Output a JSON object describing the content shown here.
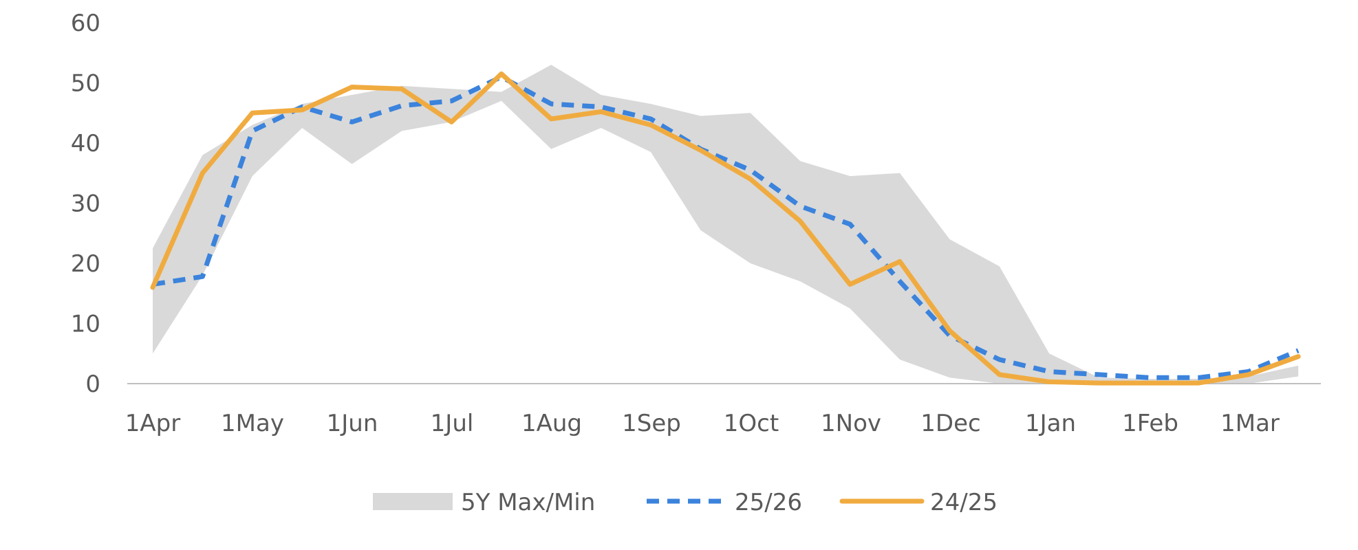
{
  "chart_data": {
    "type": "line",
    "title": "",
    "xlabel": "",
    "ylabel": "",
    "ylim": [
      0,
      60
    ],
    "yticks": [
      "0",
      "10",
      "20",
      "30",
      "40",
      "50",
      "60"
    ],
    "xticks": [
      "1Apr",
      "1May",
      "1Jun",
      "1Jul",
      "1Aug",
      "1Sep",
      "1Oct",
      "1Nov",
      "1Dec",
      "1Jan",
      "1Feb",
      "1Mar"
    ],
    "grid": false,
    "legend_position": "bottom",
    "x_week_index": [
      0,
      1,
      2,
      3,
      4,
      5,
      6,
      7,
      8,
      9,
      10,
      11,
      12,
      13,
      14,
      15,
      16,
      17,
      18,
      19,
      20,
      21,
      22,
      23
    ],
    "band": {
      "name": "5Y Max/Min",
      "color": "#d9d9d9",
      "max": [
        22.5,
        38,
        43,
        46.5,
        48,
        49.5,
        49,
        48.5,
        53,
        48,
        46.5,
        44.5,
        45,
        37,
        34.5,
        35,
        24,
        19.5,
        5,
        1,
        0.8,
        0.8,
        1.2,
        3
      ],
      "min": [
        5,
        18,
        34.5,
        42.5,
        36.5,
        42,
        43.5,
        47,
        39,
        42.5,
        38.5,
        25.5,
        20,
        17,
        12.5,
        4,
        1,
        0,
        0,
        0,
        0,
        0,
        0,
        1.2
      ]
    },
    "series": [
      {
        "name": "25/26",
        "color": "#3b83dc",
        "style": "dashed",
        "values": [
          16.5,
          17.8,
          42,
          46,
          43.5,
          46.2,
          47,
          51,
          46.5,
          46,
          44,
          39,
          35.5,
          29.5,
          26.5,
          17,
          8,
          4,
          2,
          1.5,
          1,
          1,
          2,
          5.5
        ]
      },
      {
        "name": "24/25",
        "color": "#f0ab40",
        "style": "solid",
        "values": [
          16,
          35,
          45,
          45.5,
          49.3,
          49,
          43.5,
          51.5,
          44,
          45.2,
          43,
          38.8,
          34,
          27,
          16.5,
          20.3,
          8.8,
          1.5,
          0.3,
          0.1,
          0.1,
          0.1,
          1.5,
          4.5
        ]
      }
    ]
  }
}
